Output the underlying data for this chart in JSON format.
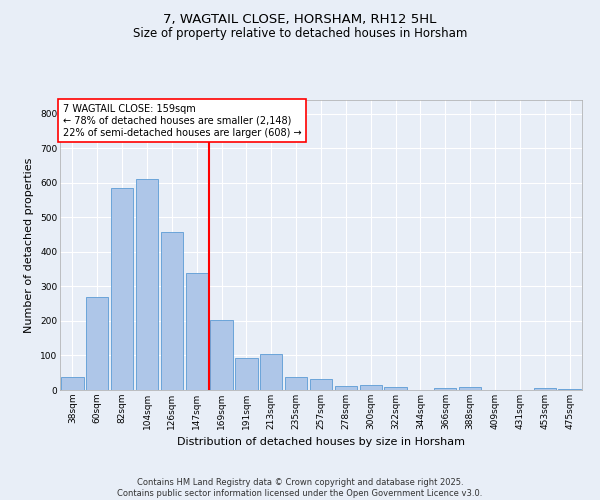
{
  "title": "7, WAGTAIL CLOSE, HORSHAM, RH12 5HL",
  "subtitle": "Size of property relative to detached houses in Horsham",
  "xlabel": "Distribution of detached houses by size in Horsham",
  "ylabel": "Number of detached properties",
  "categories": [
    "38sqm",
    "60sqm",
    "82sqm",
    "104sqm",
    "126sqm",
    "147sqm",
    "169sqm",
    "191sqm",
    "213sqm",
    "235sqm",
    "257sqm",
    "278sqm",
    "300sqm",
    "322sqm",
    "344sqm",
    "366sqm",
    "388sqm",
    "409sqm",
    "431sqm",
    "453sqm",
    "475sqm"
  ],
  "values": [
    38,
    268,
    585,
    610,
    458,
    338,
    202,
    93,
    103,
    38,
    33,
    13,
    15,
    10,
    0,
    5,
    8,
    0,
    0,
    5,
    3
  ],
  "bar_color": "#aec6e8",
  "bar_edge_color": "#5b9bd5",
  "background_color": "#e8eef7",
  "grid_color": "#ffffff",
  "vline_x": 5.5,
  "vline_color": "red",
  "annotation_text": "7 WAGTAIL CLOSE: 159sqm\n← 78% of detached houses are smaller (2,148)\n22% of semi-detached houses are larger (608) →",
  "annotation_box_color": "white",
  "annotation_box_edge_color": "red",
  "ylim": [
    0,
    840
  ],
  "yticks": [
    0,
    100,
    200,
    300,
    400,
    500,
    600,
    700,
    800
  ],
  "footer_text": "Contains HM Land Registry data © Crown copyright and database right 2025.\nContains public sector information licensed under the Open Government Licence v3.0.",
  "title_fontsize": 9.5,
  "subtitle_fontsize": 8.5,
  "tick_fontsize": 6.5,
  "ylabel_fontsize": 8,
  "xlabel_fontsize": 8,
  "annotation_fontsize": 7,
  "footer_fontsize": 6
}
